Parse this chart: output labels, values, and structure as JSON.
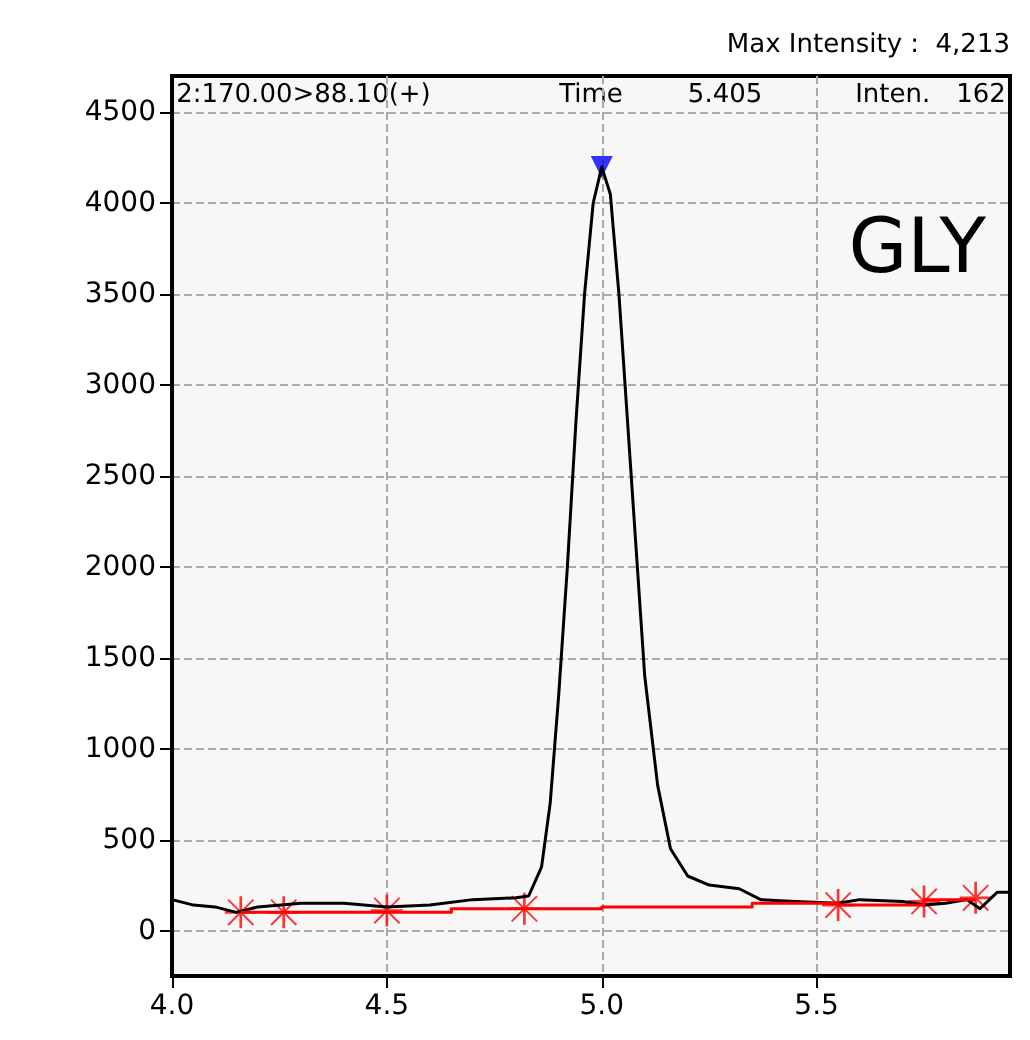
{
  "chart_data": {
    "type": "line",
    "annotations": [
      "Max Intensity :  4,213",
      "2:170.00>88.10(+)",
      "Time",
      "5.405",
      "Inten.",
      "162",
      "GLY"
    ],
    "xlim": [
      4.0,
      5.95
    ],
    "xticks": [
      {
        "value": 4,
        "label": "4.0"
      },
      {
        "value": 4.5,
        "label": "4.5"
      },
      {
        "value": 5,
        "label": "5.0"
      },
      {
        "value": 5.5,
        "label": "5.5"
      }
    ],
    "ylim": [
      -250,
      4700
    ],
    "yticks": [
      0,
      500,
      1000,
      1500,
      2000,
      2500,
      3000,
      3500,
      4000,
      4500
    ],
    "grid": true,
    "line_style": "solid",
    "series": [
      {
        "color": "#000000",
        "marker": "none",
        "x": [
          4.0,
          4.05,
          4.1,
          4.15,
          4.2,
          4.3,
          4.4,
          4.5,
          4.6,
          4.7,
          4.8,
          4.83,
          4.86,
          4.88,
          4.9,
          4.92,
          4.94,
          4.96,
          4.98,
          5.0,
          5.02,
          5.04,
          5.06,
          5.08,
          5.1,
          5.13,
          5.16,
          5.2,
          5.25,
          5.32,
          5.37,
          5.45,
          5.55,
          5.6,
          5.7,
          5.75,
          5.8,
          5.85,
          5.88,
          5.92,
          5.95
        ],
        "values": [
          170,
          140,
          130,
          100,
          130,
          150,
          150,
          130,
          140,
          170,
          180,
          190,
          350,
          700,
          1300,
          2000,
          2800,
          3500,
          4000,
          4200,
          4050,
          3500,
          2800,
          2100,
          1400,
          800,
          450,
          300,
          250,
          230,
          170,
          160,
          150,
          170,
          160,
          140,
          150,
          170,
          120,
          210,
          210
        ]
      },
      {
        "color": "#ff0000",
        "marker": "none",
        "x": [
          4.16,
          4.65,
          4.65,
          5.0,
          5.0,
          5.35,
          5.35,
          5.55,
          5.55,
          5.75,
          5.75,
          5.87
        ],
        "values": [
          100,
          100,
          120,
          120,
          130,
          130,
          150,
          150,
          140,
          140,
          170,
          170
        ]
      },
      {
        "type": "scatter",
        "color": "#ff0000",
        "marker": "cross",
        "x": [
          4.16,
          4.26,
          4.5,
          4.82,
          5.55,
          5.75,
          5.87
        ],
        "values": [
          100,
          100,
          110,
          120,
          140,
          160,
          180
        ]
      },
      {
        "type": "scatter",
        "color": "#0000ff",
        "marker": "triangle",
        "x": [
          5.0
        ],
        "values": [
          4200
        ]
      }
    ]
  }
}
